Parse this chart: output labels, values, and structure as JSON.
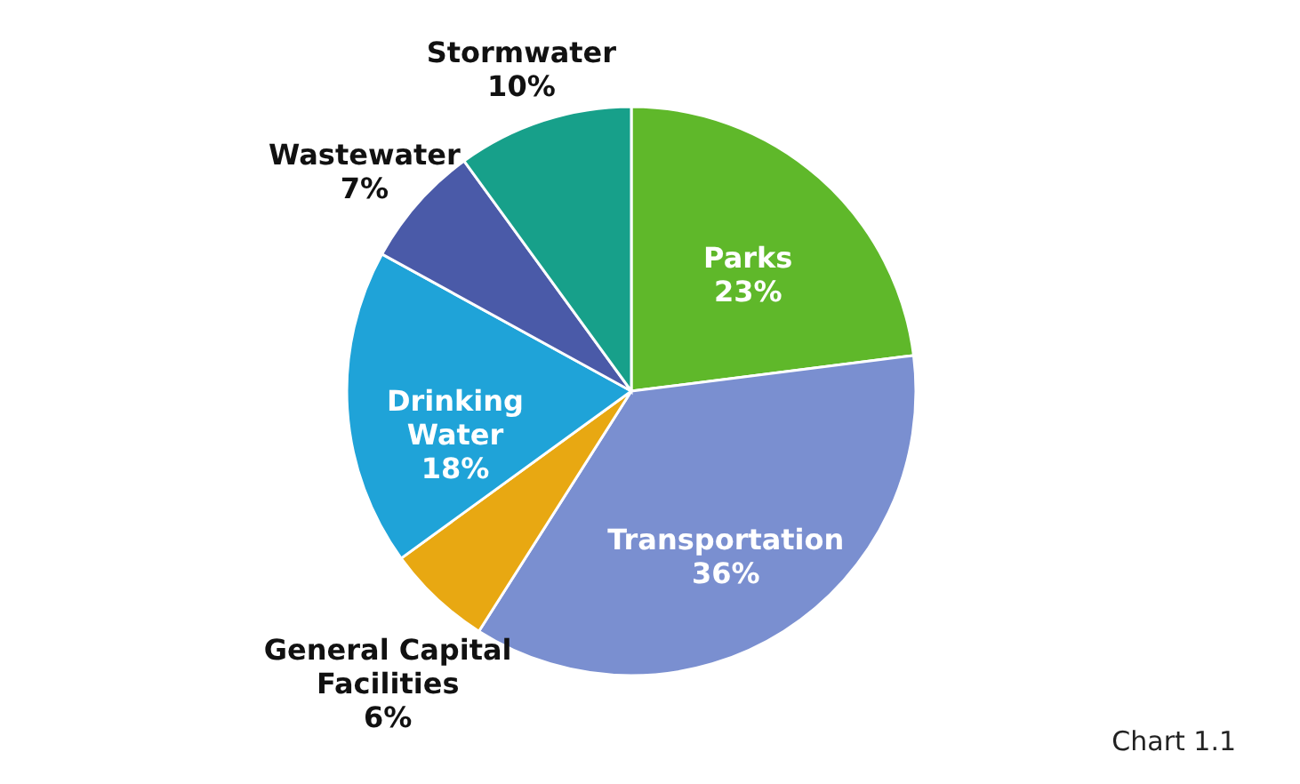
{
  "chart_data": {
    "type": "pie",
    "categories": [
      "Parks",
      "Transportation",
      "General Capital Facilities",
      "Drinking Water",
      "Wastewater",
      "Stormwater"
    ],
    "values": [
      23,
      36,
      6,
      18,
      7,
      10
    ],
    "colors": [
      "#5fb82a",
      "#7a8fd0",
      "#e8a812",
      "#1fa3d8",
      "#4a5aa8",
      "#17a08a"
    ],
    "value_labels": [
      "23%",
      "36%",
      "6%",
      "18%",
      "7%",
      "10%"
    ],
    "annotations": [
      "Chart 1.1"
    ],
    "legend": false
  }
}
